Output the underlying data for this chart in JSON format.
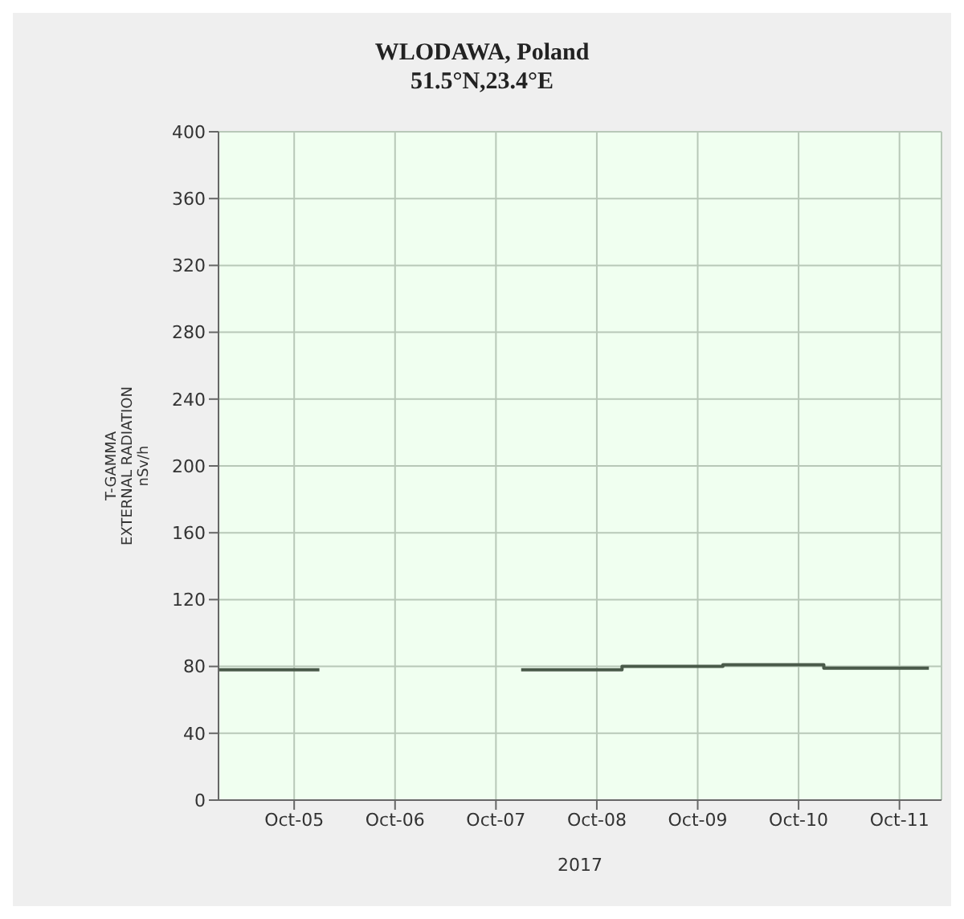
{
  "chart_data": {
    "type": "step",
    "title": "WLODAWA, Poland",
    "subtitle": "51.5°N,23.4°E",
    "xlabel": "2017",
    "ylabel": "T-GAMMA\nEXTERNAL RADIATION\nnSv/h",
    "x": [
      "2017-10-04T06:00",
      "2017-10-05T06:00",
      "2017-10-06T00:00",
      "2017-10-07T06:00",
      "2017-10-08T06:00",
      "2017-10-09T06:00",
      "2017-10-10T06:00",
      "2017-10-11T07:00"
    ],
    "series": [
      {
        "color": "#4a5a4a",
        "values": [
          78,
          78,
          null,
          78,
          80,
          81,
          79,
          79
        ]
      }
    ],
    "xlim": [
      "2017-10-04T06:00",
      "2017-10-11T10:00"
    ],
    "xticks": [
      {
        "value": "2017-10-05",
        "label": "Oct-05"
      },
      {
        "value": "2017-10-06",
        "label": "Oct-06"
      },
      {
        "value": "2017-10-07",
        "label": "Oct-07"
      },
      {
        "value": "2017-10-08",
        "label": "Oct-08"
      },
      {
        "value": "2017-10-09",
        "label": "Oct-09"
      },
      {
        "value": "2017-10-10",
        "label": "Oct-10"
      },
      {
        "value": "2017-10-11",
        "label": "Oct-11"
      }
    ],
    "ylim": [
      0,
      400
    ],
    "yticks": [
      0,
      40,
      80,
      120,
      160,
      200,
      240,
      280,
      320,
      360,
      400
    ],
    "grid": true,
    "legend": false,
    "marker": "none",
    "line_style": "solid"
  }
}
